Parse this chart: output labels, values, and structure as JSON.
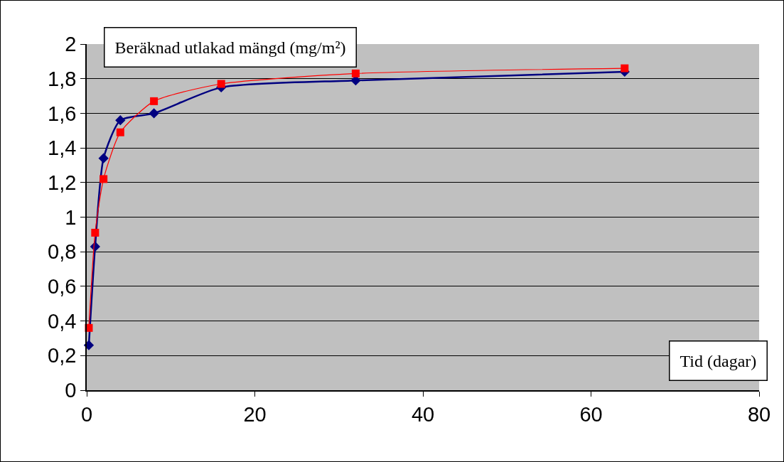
{
  "chart_data": {
    "type": "line",
    "xlabel": "Tid (dagar)",
    "ylabel": "Beräknad utlakad mängd (mg/m²)",
    "x": [
      0.25,
      1,
      2,
      4,
      8,
      16,
      32,
      64
    ],
    "series": [
      {
        "color": "#000080",
        "marker": "diamond",
        "values": [
          0.26,
          0.83,
          1.34,
          1.56,
          1.6,
          1.75,
          1.79,
          1.84
        ]
      },
      {
        "color": "#ff0000",
        "marker": "square",
        "values": [
          0.36,
          0.91,
          1.22,
          1.49,
          1.67,
          1.77,
          1.83,
          1.86
        ]
      }
    ],
    "xlim": [
      0,
      80
    ],
    "xticks": [
      0,
      20,
      40,
      60,
      80
    ],
    "ylim": [
      0,
      2
    ],
    "yticks": [
      0,
      {
        "value": 0.2,
        "label": "0,2"
      },
      {
        "value": 0.4,
        "label": "0,4"
      },
      {
        "value": 0.6,
        "label": "0,6"
      },
      {
        "value": 0.8,
        "label": "0,8"
      },
      1,
      {
        "value": 1.2,
        "label": "1,2"
      },
      {
        "value": 1.4,
        "label": "1,4"
      },
      {
        "value": 1.6,
        "label": "1,6"
      },
      {
        "value": 1.8,
        "label": "1,8"
      },
      2
    ],
    "grid": "y",
    "line_style": "solid"
  }
}
